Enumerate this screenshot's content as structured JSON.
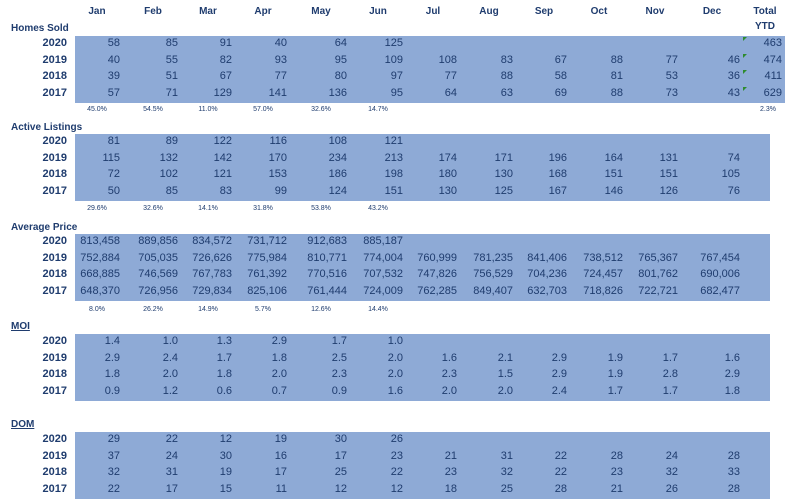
{
  "header": {
    "months": [
      "Jan",
      "Feb",
      "Mar",
      "Apr",
      "May",
      "Jun",
      "Jul",
      "Aug",
      "Sep",
      "Oct",
      "Nov",
      "Dec"
    ],
    "total_label": "Total",
    "ytd_label": "YTD"
  },
  "sections": [
    {
      "title": "Homes Sold",
      "underline": false,
      "has_total": true,
      "rows": [
        {
          "year": "2020",
          "values": [
            "58",
            "85",
            "91",
            "40",
            "64",
            "125",
            "",
            "",
            "",
            "",
            "",
            ""
          ],
          "total": "463"
        },
        {
          "year": "2019",
          "values": [
            "40",
            "55",
            "82",
            "93",
            "95",
            "109",
            "108",
            "83",
            "67",
            "88",
            "77",
            "46"
          ],
          "total": "474"
        },
        {
          "year": "2018",
          "values": [
            "39",
            "51",
            "67",
            "77",
            "80",
            "97",
            "77",
            "88",
            "58",
            "81",
            "53",
            "36"
          ],
          "total": "411"
        },
        {
          "year": "2017",
          "values": [
            "57",
            "71",
            "129",
            "141",
            "136",
            "95",
            "64",
            "63",
            "69",
            "88",
            "73",
            "43"
          ],
          "total": "629"
        }
      ],
      "pct": [
        "45.0%",
        "54.5%",
        "11.0%",
        "57.0%",
        "32.6%",
        "14.7%"
      ],
      "pct_total": "2.3%"
    },
    {
      "title": "Active Listings",
      "underline": false,
      "has_total": false,
      "rows": [
        {
          "year": "2020",
          "values": [
            "81",
            "89",
            "122",
            "116",
            "108",
            "121",
            "",
            "",
            "",
            "",
            "",
            ""
          ]
        },
        {
          "year": "2019",
          "values": [
            "115",
            "132",
            "142",
            "170",
            "234",
            "213",
            "174",
            "171",
            "196",
            "164",
            "131",
            "74"
          ]
        },
        {
          "year": "2018",
          "values": [
            "72",
            "102",
            "121",
            "153",
            "186",
            "198",
            "180",
            "130",
            "168",
            "151",
            "151",
            "105"
          ]
        },
        {
          "year": "2017",
          "values": [
            "50",
            "85",
            "83",
            "99",
            "124",
            "151",
            "130",
            "125",
            "167",
            "146",
            "126",
            "76"
          ]
        }
      ],
      "pct": [
        "29.6%",
        "32.6%",
        "14.1%",
        "31.8%",
        "53.8%",
        "43.2%"
      ]
    },
    {
      "title": "Average Price",
      "underline": false,
      "has_total": false,
      "rows": [
        {
          "year": "2020",
          "values": [
            "813,458",
            "889,856",
            "834,572",
            "731,712",
            "912,683",
            "885,187",
            "",
            "",
            "",
            "",
            "",
            ""
          ]
        },
        {
          "year": "2019",
          "values": [
            "752,884",
            "705,035",
            "726,626",
            "775,984",
            "810,771",
            "774,004",
            "760,999",
            "781,235",
            "841,406",
            "738,512",
            "765,367",
            "767,454"
          ]
        },
        {
          "year": "2018",
          "values": [
            "668,885",
            "746,569",
            "767,783",
            "761,392",
            "770,516",
            "707,532",
            "747,826",
            "756,529",
            "704,236",
            "724,457",
            "801,762",
            "690,006"
          ]
        },
        {
          "year": "2017",
          "values": [
            "648,370",
            "726,956",
            "729,834",
            "825,106",
            "761,444",
            "724,009",
            "762,285",
            "849,407",
            "632,703",
            "718,826",
            "722,721",
            "682,477"
          ]
        }
      ],
      "pct": [
        "8.0%",
        "26.2%",
        "14.9%",
        "5.7%",
        "12.6%",
        "14.4%"
      ]
    },
    {
      "title": "MOI",
      "underline": true,
      "has_total": false,
      "rows": [
        {
          "year": "2020",
          "values": [
            "1.4",
            "1.0",
            "1.3",
            "2.9",
            "1.7",
            "1.0",
            "",
            "",
            "",
            "",
            "",
            ""
          ]
        },
        {
          "year": "2019",
          "values": [
            "2.9",
            "2.4",
            "1.7",
            "1.8",
            "2.5",
            "2.0",
            "1.6",
            "2.1",
            "2.9",
            "1.9",
            "1.7",
            "1.6"
          ]
        },
        {
          "year": "2018",
          "values": [
            "1.8",
            "2.0",
            "1.8",
            "2.0",
            "2.3",
            "2.0",
            "2.3",
            "1.5",
            "2.9",
            "1.9",
            "2.8",
            "2.9"
          ]
        },
        {
          "year": "2017",
          "values": [
            "0.9",
            "1.2",
            "0.6",
            "0.7",
            "0.9",
            "1.6",
            "2.0",
            "2.0",
            "2.4",
            "1.7",
            "1.7",
            "1.8"
          ]
        }
      ]
    },
    {
      "title": "DOM",
      "underline": true,
      "has_total": false,
      "rows": [
        {
          "year": "2020",
          "values": [
            "29",
            "22",
            "12",
            "19",
            "30",
            "26",
            "",
            "",
            "",
            "",
            "",
            ""
          ]
        },
        {
          "year": "2019",
          "values": [
            "37",
            "24",
            "30",
            "16",
            "17",
            "23",
            "21",
            "31",
            "22",
            "28",
            "24",
            "28"
          ]
        },
        {
          "year": "2018",
          "values": [
            "32",
            "31",
            "19",
            "17",
            "25",
            "22",
            "23",
            "32",
            "22",
            "23",
            "32",
            "33"
          ]
        },
        {
          "year": "2017",
          "values": [
            "22",
            "17",
            "15",
            "11",
            "12",
            "12",
            "18",
            "25",
            "28",
            "21",
            "26",
            "28"
          ]
        }
      ]
    }
  ],
  "colors": {
    "band": "#8eaad6",
    "text": "#1f3c6e",
    "flag": "#2e8b2e"
  }
}
